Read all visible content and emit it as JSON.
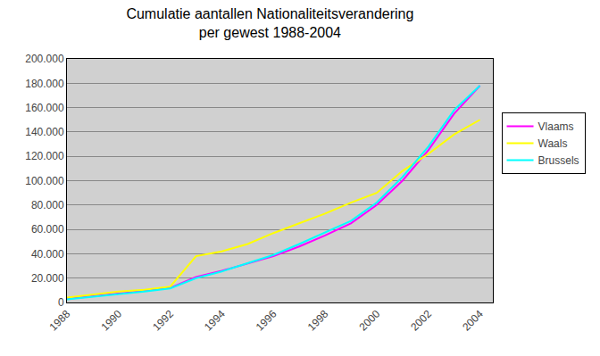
{
  "chart_data": {
    "type": "line",
    "title": "Cumulatie aantallen Nationaliteitsverandering\nper gewest 1988-2004",
    "x": [
      1988,
      1989,
      1990,
      1991,
      1992,
      1993,
      1994,
      1995,
      1996,
      1997,
      1998,
      1999,
      2000,
      2001,
      2002,
      2003,
      2004
    ],
    "series": [
      {
        "name": "Vlaams",
        "color": "#FF00FF",
        "values": [
          3000,
          5000,
          7500,
          9500,
          12000,
          21000,
          26000,
          32000,
          38000,
          46000,
          55000,
          65000,
          80000,
          100000,
          125000,
          155000,
          178000
        ]
      },
      {
        "name": "Waals",
        "color": "#FFFF00",
        "values": [
          4000,
          6500,
          9000,
          10500,
          13000,
          38000,
          42000,
          48000,
          57000,
          65000,
          73000,
          82000,
          90000,
          108000,
          122000,
          138000,
          150000
        ]
      },
      {
        "name": "Brussels",
        "color": "#00FFFF",
        "values": [
          2500,
          4500,
          7000,
          9000,
          11500,
          20000,
          25500,
          32000,
          39000,
          48000,
          57500,
          67000,
          82000,
          103000,
          128000,
          158000,
          178000
        ]
      }
    ],
    "xlim": [
      1988,
      2004.5
    ],
    "xticks": [
      1988,
      1990,
      1992,
      1994,
      1996,
      1998,
      2000,
      2002,
      2004
    ],
    "ylim": [
      0,
      200000
    ],
    "yticks": [
      0,
      {
        "value": 20000,
        "label": "20.000"
      },
      {
        "value": 40000,
        "label": "40.000"
      },
      {
        "value": 60000,
        "label": "60.000"
      },
      {
        "value": 80000,
        "label": "80.000"
      },
      {
        "value": 100000,
        "label": "100.000"
      },
      {
        "value": 120000,
        "label": "120.000"
      },
      {
        "value": 140000,
        "label": "140.000"
      },
      {
        "value": 160000,
        "label": "160.000"
      },
      {
        "value": 180000,
        "label": "180.000"
      },
      {
        "value": 200000,
        "label": "200.000"
      }
    ],
    "grid": true,
    "legend": "right"
  }
}
